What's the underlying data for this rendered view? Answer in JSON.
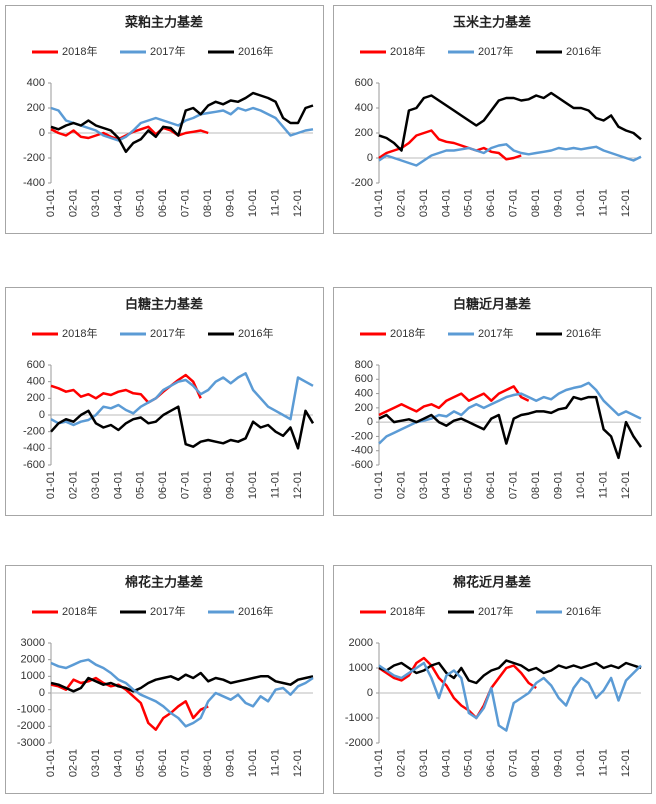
{
  "chart_data": [
    {
      "type": "line",
      "title": "菜粕主力基差",
      "ylim": [
        -400,
        400
      ],
      "yticks": [
        -400,
        -200,
        0,
        200,
        400
      ],
      "categories": [
        "01-01",
        null,
        null,
        "02-01",
        null,
        null,
        "03-01",
        null,
        null,
        "04-01",
        null,
        null,
        "05-01",
        null,
        null,
        "06-01",
        null,
        null,
        "07-01",
        null,
        null,
        "08-01",
        null,
        null,
        "09-01",
        null,
        null,
        "10-01",
        null,
        null,
        "11-01",
        null,
        null,
        "12-01",
        null,
        null
      ],
      "series": [
        {
          "name": "2018年",
          "color": "#ff0000",
          "values": [
            30,
            0,
            -20,
            20,
            -30,
            -40,
            -20,
            0,
            -30,
            -50,
            -20,
            10,
            30,
            50,
            -10,
            40,
            20,
            -20,
            0,
            10,
            20,
            0,
            null,
            null,
            null,
            null,
            null,
            null,
            null,
            null,
            null,
            null,
            null,
            null,
            null,
            null
          ]
        },
        {
          "name": "2017年",
          "color": "#5b9bd5",
          "values": [
            200,
            180,
            100,
            80,
            60,
            40,
            20,
            -20,
            -40,
            -60,
            -30,
            20,
            80,
            100,
            120,
            100,
            80,
            60,
            100,
            120,
            150,
            160,
            170,
            180,
            150,
            200,
            180,
            200,
            180,
            150,
            120,
            50,
            -20,
            0,
            20,
            30
          ]
        },
        {
          "name": "2016年",
          "color": "#000000",
          "values": [
            50,
            30,
            60,
            80,
            60,
            100,
            60,
            40,
            20,
            -40,
            -150,
            -80,
            -50,
            20,
            -30,
            50,
            40,
            -20,
            180,
            200,
            150,
            220,
            250,
            230,
            260,
            250,
            280,
            320,
            300,
            280,
            250,
            120,
            80,
            80,
            200,
            220
          ]
        }
      ]
    },
    {
      "type": "line",
      "title": "玉米主力基差",
      "ylim": [
        -200,
        600
      ],
      "yticks": [
        -200,
        0,
        200,
        400,
        600
      ],
      "categories": [
        "01-01",
        null,
        null,
        "02-01",
        null,
        null,
        "03-01",
        null,
        null,
        "04-01",
        null,
        null,
        "05-01",
        null,
        null,
        "06-01",
        null,
        null,
        "07-01",
        null,
        null,
        "08-01",
        null,
        null,
        "09-01",
        null,
        null,
        "10-01",
        null,
        null,
        "11-01",
        null,
        null,
        "12-01",
        null,
        null
      ],
      "series": [
        {
          "name": "2018年",
          "color": "#ff0000",
          "values": [
            0,
            40,
            60,
            80,
            120,
            180,
            200,
            220,
            150,
            130,
            120,
            100,
            80,
            60,
            80,
            50,
            40,
            -10,
            0,
            20,
            null,
            null,
            null,
            null,
            null,
            null,
            null,
            null,
            null,
            null,
            null,
            null,
            null,
            null,
            null,
            null
          ]
        },
        {
          "name": "2017年",
          "color": "#5b9bd5",
          "values": [
            -20,
            20,
            0,
            -20,
            -40,
            -60,
            -20,
            20,
            40,
            60,
            60,
            70,
            80,
            60,
            40,
            80,
            100,
            110,
            60,
            40,
            30,
            40,
            50,
            60,
            80,
            70,
            80,
            70,
            80,
            90,
            60,
            40,
            20,
            0,
            -20,
            10
          ]
        },
        {
          "name": "2016年",
          "color": "#000000",
          "values": [
            180,
            160,
            120,
            60,
            380,
            400,
            480,
            500,
            460,
            420,
            380,
            340,
            300,
            260,
            300,
            380,
            460,
            480,
            480,
            460,
            470,
            500,
            480,
            520,
            480,
            440,
            400,
            400,
            380,
            320,
            300,
            340,
            250,
            220,
            200,
            150
          ]
        }
      ]
    },
    {
      "type": "line",
      "title": "白糖主力基差",
      "ylim": [
        -600,
        600
      ],
      "yticks": [
        -600,
        -400,
        -200,
        0,
        200,
        400,
        600
      ],
      "categories": [
        "01-01",
        null,
        null,
        "02-01",
        null,
        null,
        "03-01",
        null,
        null,
        "04-01",
        null,
        null,
        "05-01",
        null,
        null,
        "06-01",
        null,
        null,
        "07-01",
        null,
        null,
        "08-01",
        null,
        null,
        "09-01",
        null,
        null,
        "10-01",
        null,
        null,
        "11-01",
        null,
        null,
        "12-01",
        null,
        null
      ],
      "series": [
        {
          "name": "2018年",
          "color": "#ff0000",
          "values": [
            350,
            320,
            280,
            300,
            220,
            250,
            200,
            260,
            240,
            280,
            300,
            260,
            250,
            150,
            200,
            280,
            350,
            420,
            480,
            400,
            200,
            null,
            null,
            null,
            null,
            null,
            null,
            null,
            null,
            null,
            null,
            null,
            null,
            null,
            null,
            null
          ]
        },
        {
          "name": "2017年",
          "color": "#5b9bd5",
          "values": [
            -50,
            -100,
            -80,
            -120,
            -80,
            -60,
            0,
            100,
            80,
            120,
            60,
            20,
            100,
            150,
            200,
            300,
            350,
            400,
            420,
            350,
            250,
            300,
            400,
            450,
            380,
            450,
            500,
            300,
            200,
            100,
            50,
            0,
            -50,
            450,
            400,
            350
          ]
        },
        {
          "name": "2016年",
          "color": "#000000",
          "values": [
            -200,
            -100,
            -50,
            -80,
            0,
            50,
            -100,
            -150,
            -120,
            -180,
            -100,
            -50,
            -30,
            -100,
            -80,
            0,
            50,
            100,
            -350,
            -380,
            -320,
            -300,
            -320,
            -340,
            -300,
            -320,
            -280,
            -80,
            -150,
            -120,
            -200,
            -250,
            -150,
            -400,
            50,
            -100
          ]
        }
      ]
    },
    {
      "type": "line",
      "title": "白糖近月基差",
      "ylim": [
        -600,
        800
      ],
      "yticks": [
        -600,
        -400,
        -200,
        0,
        200,
        400,
        600,
        800
      ],
      "categories": [
        "01-01",
        null,
        null,
        "02-01",
        null,
        null,
        "03-01",
        null,
        null,
        "04-01",
        null,
        null,
        "05-01",
        null,
        null,
        "06-01",
        null,
        null,
        "07-01",
        null,
        null,
        "08-01",
        null,
        null,
        "09-01",
        null,
        null,
        "10-01",
        null,
        null,
        "11-01",
        null,
        null,
        "12-01",
        null,
        null
      ],
      "series": [
        {
          "name": "2018年",
          "color": "#ff0000",
          "values": [
            100,
            150,
            200,
            250,
            200,
            150,
            220,
            250,
            200,
            300,
            350,
            400,
            300,
            350,
            400,
            300,
            400,
            450,
            500,
            350,
            300,
            null,
            null,
            null,
            null,
            null,
            null,
            null,
            null,
            null,
            null,
            null,
            null,
            null,
            null,
            null
          ]
        },
        {
          "name": "2017年",
          "color": "#5b9bd5",
          "values": [
            -300,
            -200,
            -150,
            -100,
            -50,
            0,
            20,
            50,
            100,
            80,
            150,
            100,
            200,
            250,
            200,
            250,
            300,
            350,
            380,
            400,
            350,
            300,
            350,
            320,
            400,
            450,
            480,
            500,
            550,
            450,
            300,
            200,
            100,
            150,
            100,
            50
          ]
        },
        {
          "name": "2016年",
          "color": "#000000",
          "values": [
            50,
            100,
            0,
            20,
            40,
            0,
            50,
            100,
            0,
            -50,
            20,
            50,
            0,
            -50,
            -100,
            50,
            100,
            -300,
            50,
            100,
            120,
            150,
            150,
            130,
            180,
            200,
            350,
            320,
            350,
            350,
            -100,
            -200,
            -500,
            0,
            -200,
            -350
          ]
        }
      ]
    },
    {
      "type": "line",
      "title": "棉花主力基差",
      "ylim": [
        -3000,
        3000
      ],
      "yticks": [
        -3000,
        -2000,
        -1000,
        0,
        1000,
        2000,
        3000
      ],
      "categories": [
        "01-01",
        null,
        null,
        "02-01",
        null,
        null,
        "03-01",
        null,
        null,
        "04-01",
        null,
        null,
        "05-01",
        null,
        null,
        "06-01",
        null,
        null,
        "07-01",
        null,
        null,
        "08-01",
        null,
        null,
        "09-01",
        null,
        null,
        "10-01",
        null,
        null,
        "11-01",
        null,
        null,
        "12-01",
        null,
        null
      ],
      "series": [
        {
          "name": "2018年",
          "color": "#ff0000",
          "values": [
            500,
            400,
            200,
            800,
            600,
            700,
            900,
            600,
            400,
            500,
            200,
            -200,
            -600,
            -1800,
            -2200,
            -1500,
            -1200,
            -800,
            -500,
            -1500,
            -1000,
            -800,
            null,
            null,
            null,
            null,
            null,
            null,
            null,
            null,
            null,
            null,
            null,
            null,
            null,
            null
          ]
        },
        {
          "name": "2017年",
          "color": "#000000",
          "values": [
            600,
            500,
            300,
            100,
            300,
            900,
            700,
            500,
            600,
            400,
            300,
            100,
            300,
            600,
            800,
            900,
            1000,
            800,
            1100,
            900,
            1200,
            700,
            900,
            800,
            600,
            700,
            800,
            900,
            1000,
            1000,
            700,
            600,
            500,
            800,
            900,
            1000
          ]
        },
        {
          "name": "2016年",
          "color": "#5b9bd5",
          "values": [
            1800,
            1600,
            1500,
            1700,
            1900,
            2000,
            1700,
            1500,
            1200,
            800,
            600,
            200,
            -100,
            -300,
            -500,
            -800,
            -1200,
            -1500,
            -2000,
            -1800,
            -1500,
            -500,
            0,
            -200,
            -400,
            -100,
            -600,
            -800,
            -200,
            -500,
            200,
            300,
            -100,
            400,
            600,
            900
          ]
        }
      ]
    },
    {
      "type": "line",
      "title": "棉花近月基差",
      "ylim": [
        -2000,
        2000
      ],
      "yticks": [
        -2000,
        -1000,
        0,
        1000,
        2000
      ],
      "categories": [
        "01-01",
        null,
        null,
        "02-01",
        null,
        null,
        "03-01",
        null,
        null,
        "04-01",
        null,
        null,
        "05-01",
        null,
        null,
        "06-01",
        null,
        null,
        "07-01",
        null,
        null,
        "08-01",
        null,
        null,
        "09-01",
        null,
        null,
        "10-01",
        null,
        null,
        "11-01",
        null,
        null,
        "12-01",
        null,
        null
      ],
      "series": [
        {
          "name": "2018年",
          "color": "#ff0000",
          "values": [
            1000,
            800,
            600,
            500,
            700,
            1200,
            1400,
            1100,
            600,
            300,
            -200,
            -500,
            -700,
            -1000,
            -500,
            200,
            600,
            1000,
            1100,
            800,
            400,
            200,
            null,
            null,
            null,
            null,
            null,
            null,
            null,
            null,
            null,
            null,
            null,
            null,
            null,
            null
          ]
        },
        {
          "name": "2017年",
          "color": "#000000",
          "values": [
            1000,
            900,
            1100,
            1200,
            1000,
            800,
            900,
            1100,
            1200,
            800,
            600,
            1000,
            500,
            400,
            700,
            900,
            1000,
            1300,
            1200,
            1100,
            900,
            1000,
            800,
            900,
            1100,
            1000,
            1100,
            1000,
            1100,
            1200,
            1000,
            1100,
            1000,
            1200,
            1100,
            1000
          ]
        },
        {
          "name": "2016年",
          "color": "#5b9bd5",
          "values": [
            1100,
            900,
            700,
            600,
            800,
            1000,
            1200,
            600,
            -200,
            700,
            900,
            600,
            -800,
            -1000,
            -600,
            200,
            -1300,
            -1500,
            -400,
            -200,
            0,
            400,
            600,
            300,
            -200,
            -500,
            200,
            600,
            400,
            -200,
            100,
            600,
            -300,
            500,
            800,
            1100
          ]
        }
      ]
    }
  ]
}
